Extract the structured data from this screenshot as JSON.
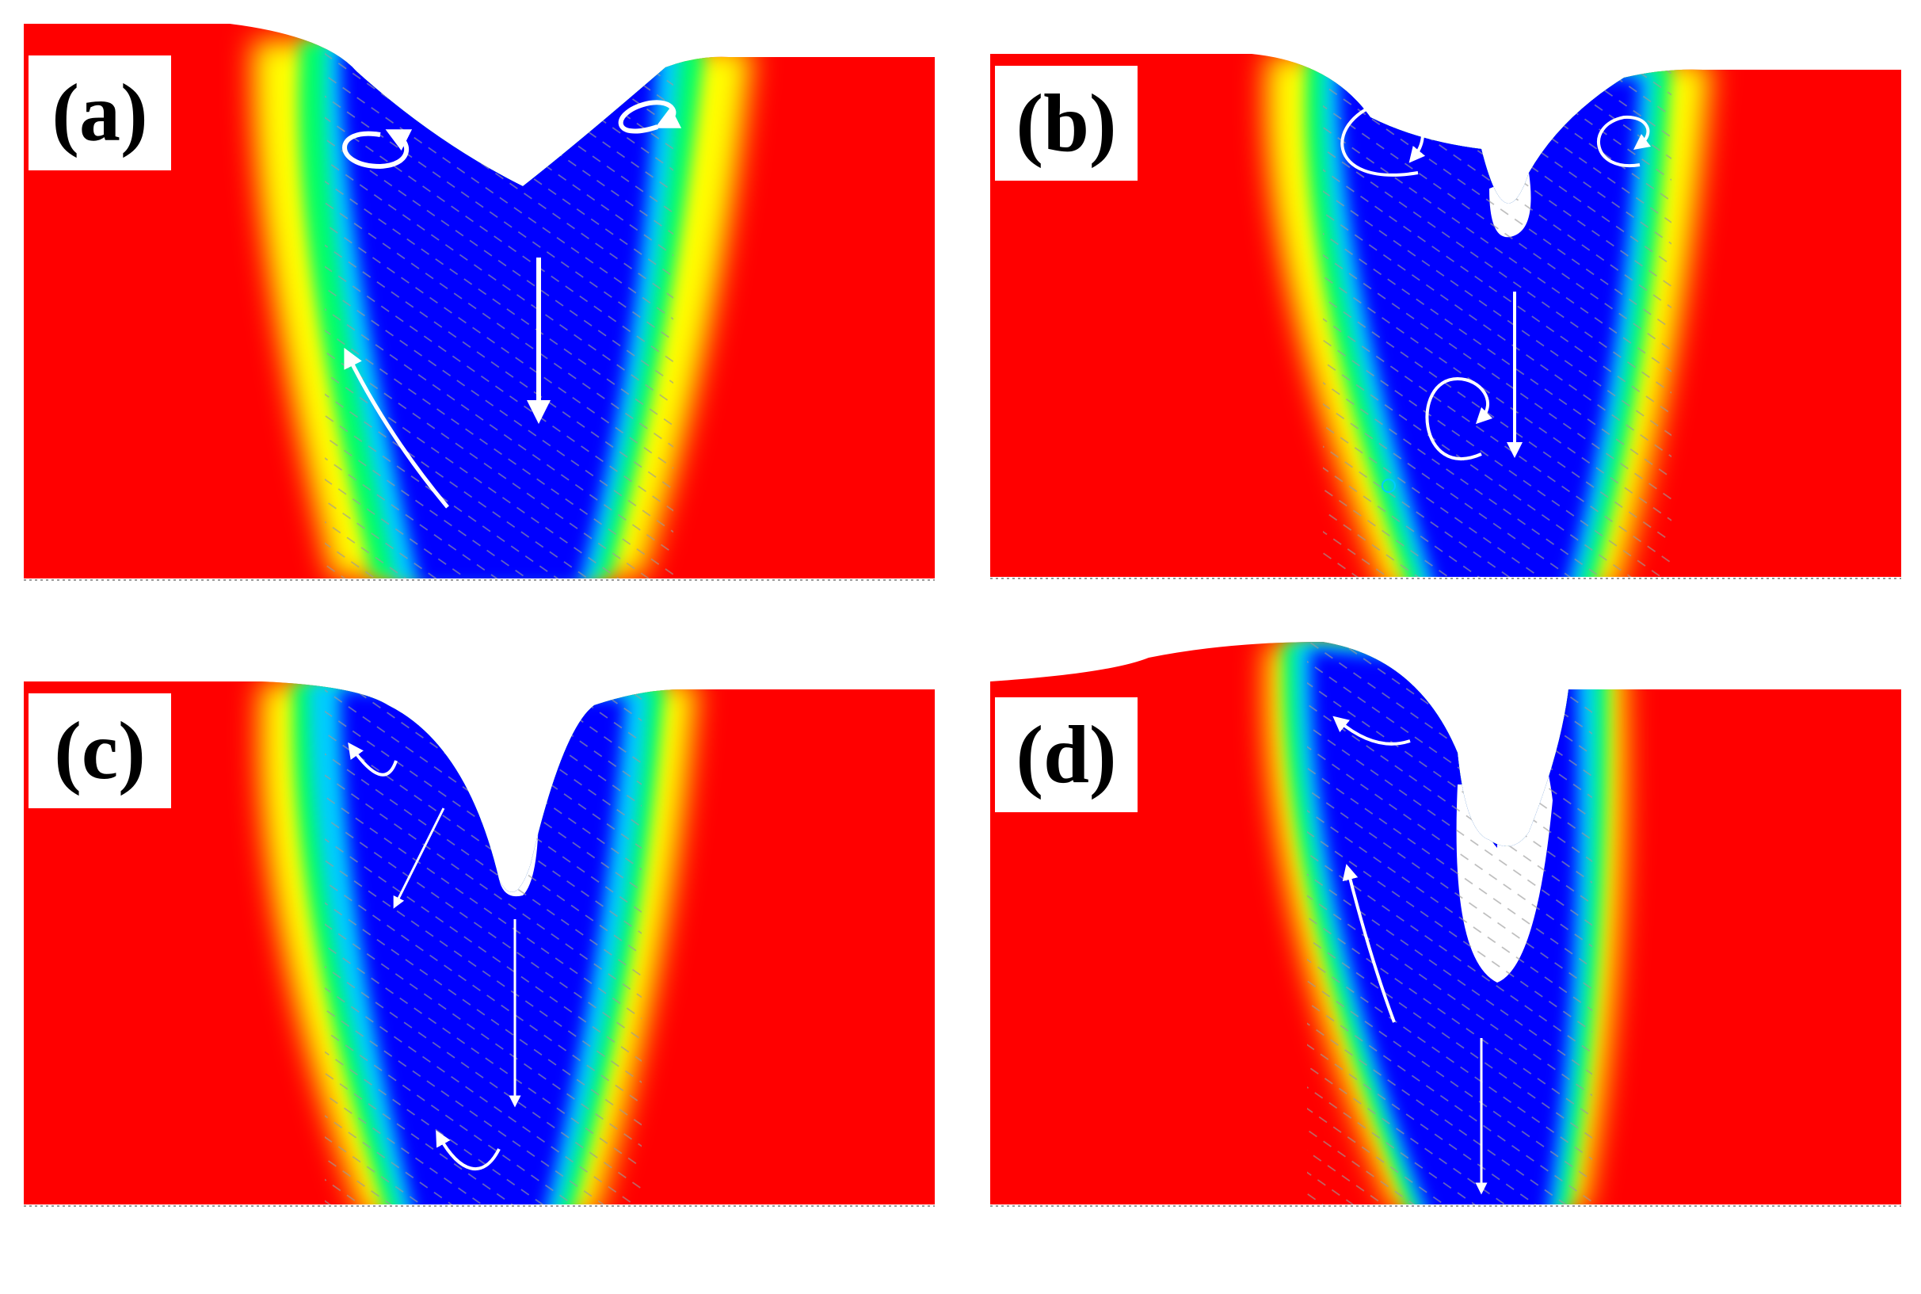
{
  "figure": {
    "panels": [
      {
        "id": "a",
        "label": "(a)"
      },
      {
        "id": "b",
        "label": "(b)"
      },
      {
        "id": "c",
        "label": "(c)"
      },
      {
        "id": "d",
        "label": "(d)"
      }
    ],
    "colormap": [
      "#0000ff",
      "#00ccff",
      "#00ff66",
      "#ffff00",
      "#ff0000"
    ],
    "background_color": "#ff0000",
    "flow_arrow_color": "#ffffff",
    "velocity_vector_color": "#888888"
  }
}
